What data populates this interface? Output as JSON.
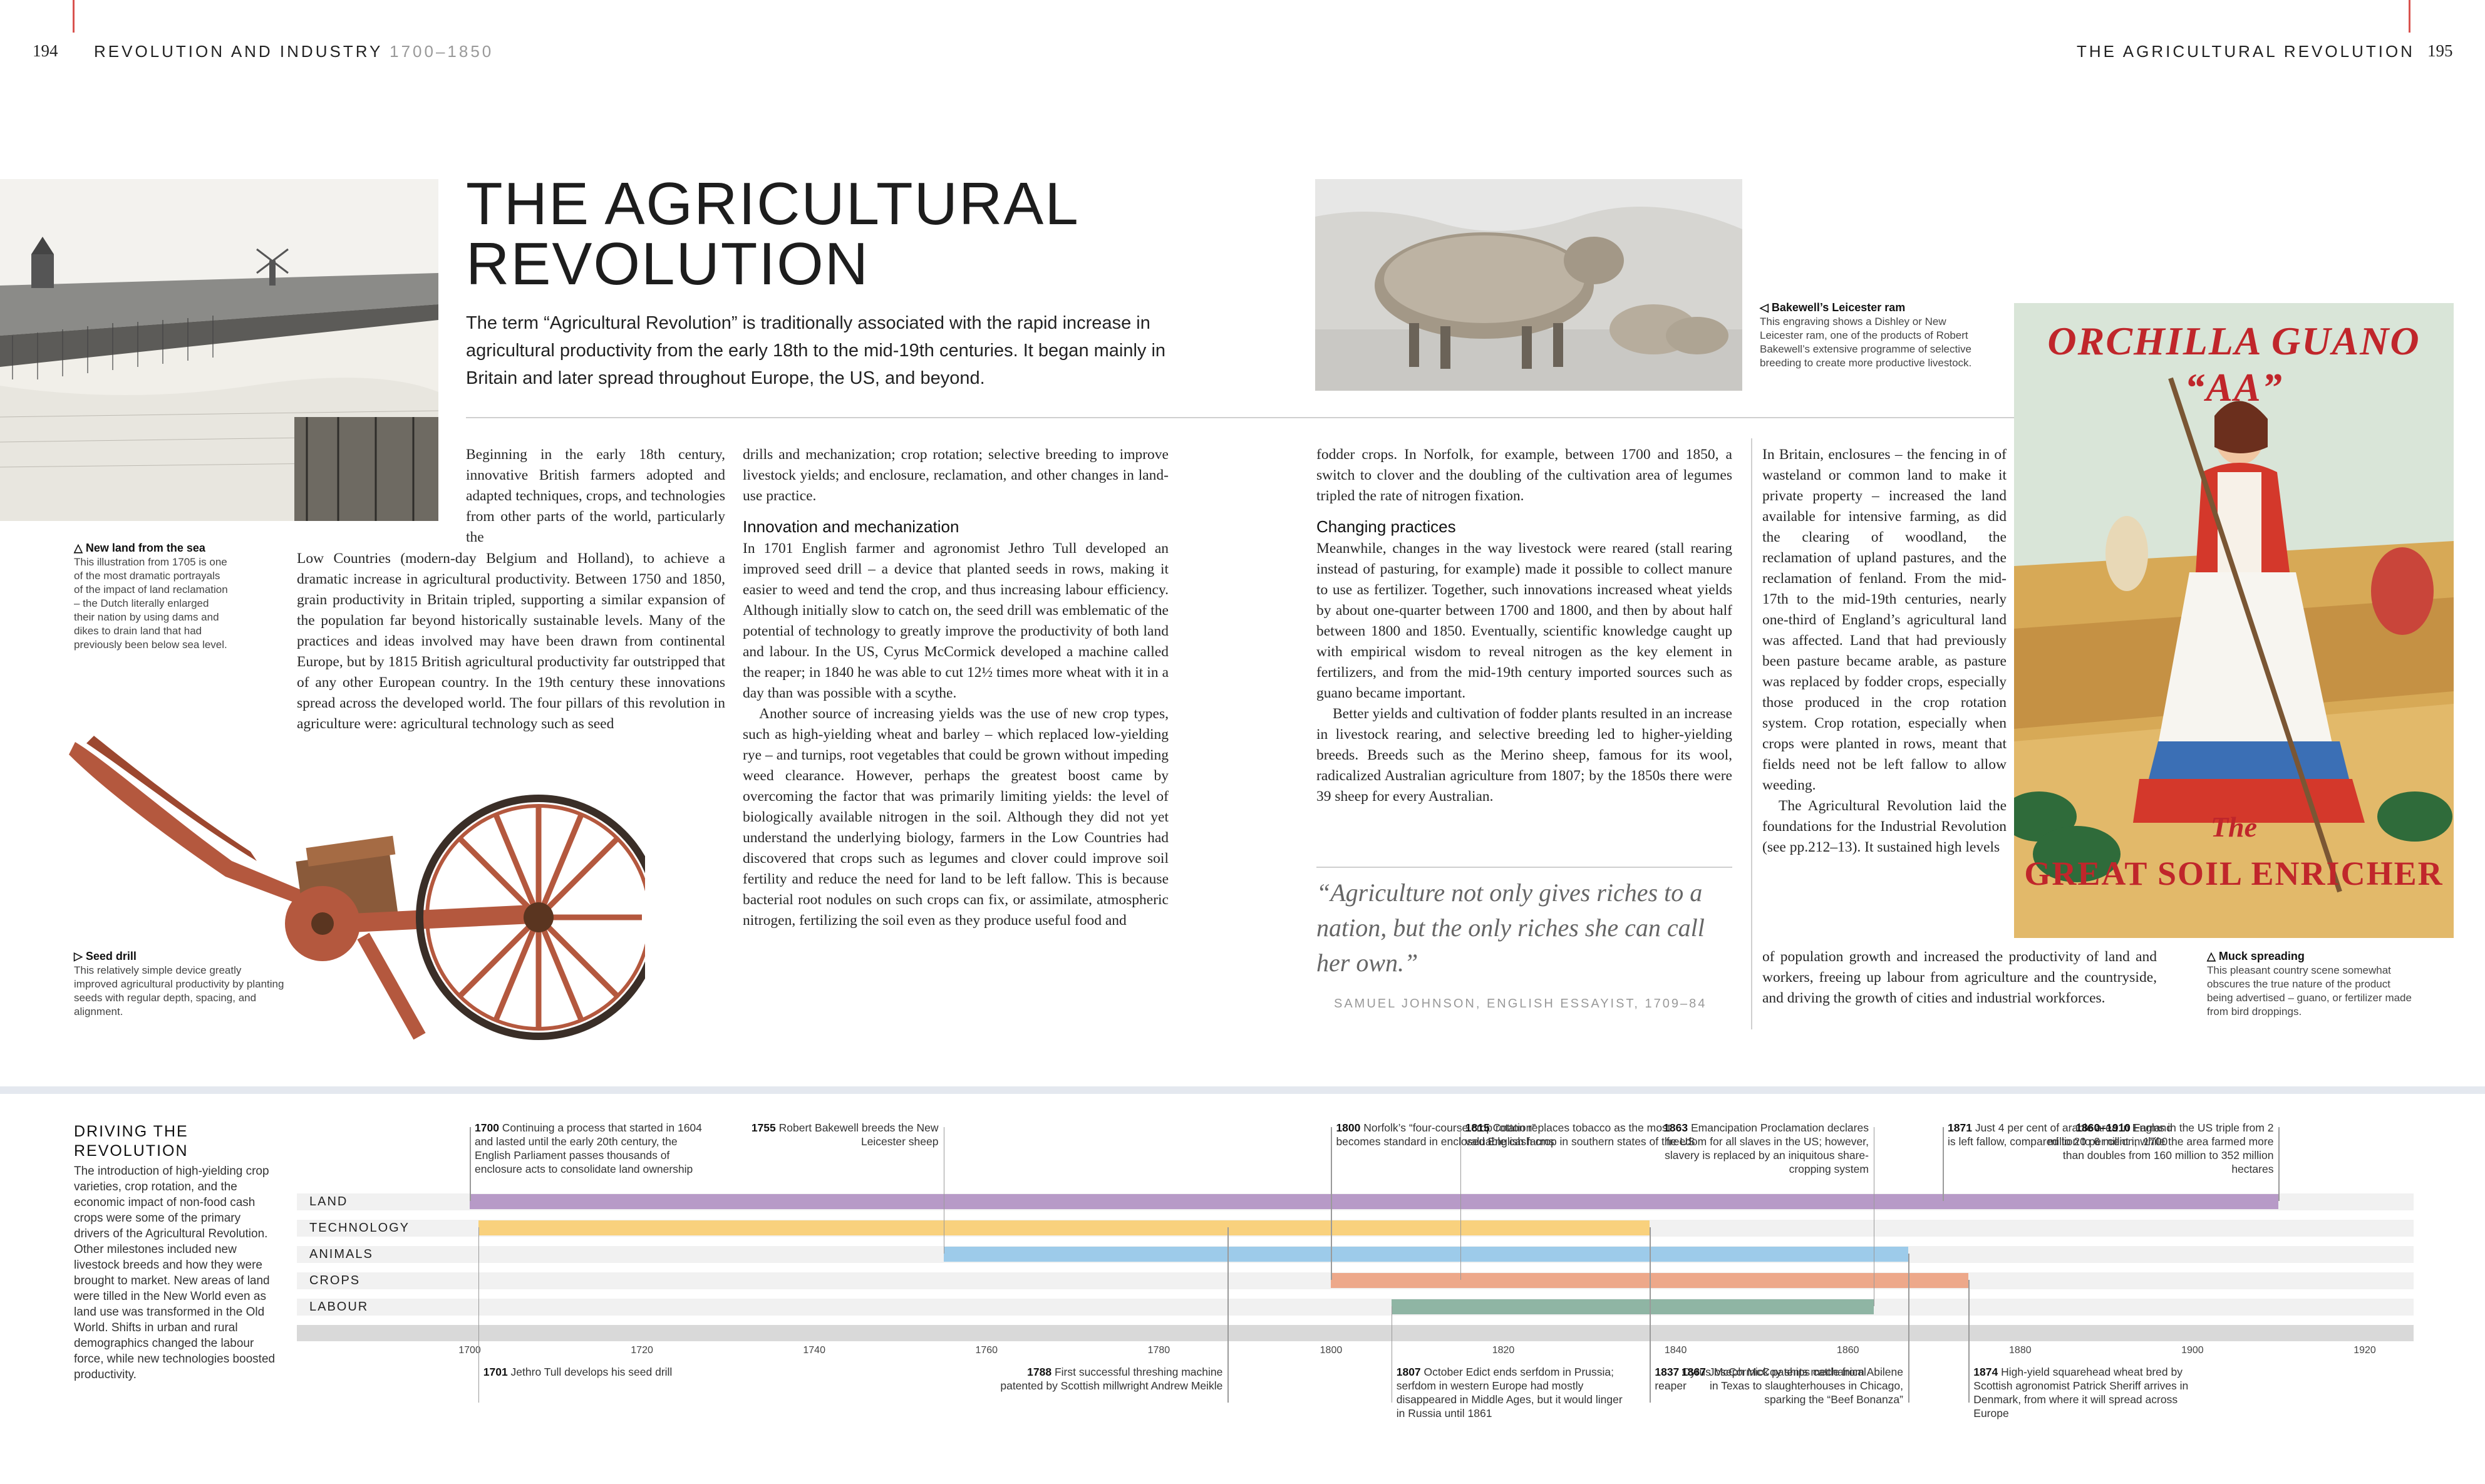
{
  "header": {
    "left_page": "194",
    "left_section": "REVOLUTION AND INDUSTRY",
    "left_dates": "1700–1850",
    "right_section": "THE AGRICULTURAL REVOLUTION",
    "right_page": "195"
  },
  "title_lines": [
    "THE AGRICULTURAL",
    "REVOLUTION"
  ],
  "intro": "The term “Agricultural Revolution” is traditionally associated with the rapid increase in agricultural productivity from the early 18th to the mid-19th centuries. It began mainly in Britain and later spread throughout Europe, the US, and beyond.",
  "captions": {
    "new_land": {
      "title": "△ New land from the sea",
      "text": "This illustration from 1705 is one of the most dramatic portrayals of the impact of land reclamation – the Dutch literally enlarged their nation by using dams and dikes to drain land that had previously been below sea level."
    },
    "seed_drill": {
      "title": "▷ Seed drill",
      "text": "This relatively simple device greatly improved agricultural productivity by planting seeds with regular depth, spacing, and alignment."
    },
    "ram": {
      "title": "◁ Bakewell’s Leicester ram",
      "text": "This engraving shows a Dishley or New Leicester ram, one of the products of Robert Bakewell’s extensive programme of selective breeding to create more productive livestock."
    },
    "muck": {
      "title": "△ Muck spreading",
      "text": "This pleasant country scene somewhat obscures the true nature of the product being advertised – guano, or fertilizer made from bird droppings."
    }
  },
  "poster": {
    "top_text": "ORCHILLA GUANO “AA”",
    "the": "The",
    "bottom_text": "GREAT SOIL ENRICHER"
  },
  "col1": {
    "p1_top": "Beginning in the early 18th century, innovative British farmers adopted and adapted techniques, crops, and technologies from other parts of the world, particularly the",
    "p1_rest": "Low Countries (modern-day Belgium and Holland), to achieve a dramatic increase in agricultural productivity. Between 1750 and 1850, grain productivity in Britain tripled, supporting a similar expansion of the population far beyond historically sustainable levels. Many of the practices and ideas involved may have been drawn from continental Europe, but by 1815 British agricultural productivity far outstripped that of any other European country. In the 19th century these innovations spread across the developed world. The four pillars of this revolution in agriculture were: agricultural technology such as seed"
  },
  "col2": {
    "p0": "drills and mechanization; crop rotation; selective breeding to improve livestock yields; and enclosure, reclamation, and other changes in land-use practice.",
    "heading": "Innovation and mechanization",
    "p1": "In 1701 English farmer and agronomist Jethro Tull developed an improved seed drill – a device that planted seeds in rows, making it easier to weed and tend the crop, and thus increasing labour efficiency. Although initially slow to catch on, the seed drill was emblematic of the potential of technology to greatly improve the productivity of both land and labour. In the US, Cyrus McCormick developed a machine called the reaper; in 1840 he was able to cut 12½ times more wheat with it in a day than was possible with a scythe.",
    "p2": "Another source of increasing yields was the use of new crop types, such as high-yielding wheat and barley – which replaced low-yielding rye – and turnips, root vegetables that could be grown without impeding weed clearance. However, perhaps the greatest boost came by overcoming the factor that was primarily limiting yields: the level of biologically available nitrogen in the soil. Although they did not yet understand the underlying biology, farmers in the Low Countries had discovered that crops such as legumes and clover could improve soil fertility and reduce the need for land to be left fallow. This is because bacterial root nodules on such crops can fix, or assimilate, atmospheric nitrogen, fertilizing the soil even as they produce useful food and"
  },
  "col3": {
    "p0": "fodder crops. In Norfolk, for example, between 1700 and 1850, a switch to clover and the doubling of the cultivation area of legumes tripled the rate of nitrogen fixation.",
    "heading": "Changing practices",
    "p1": "Meanwhile, changes in the way livestock were reared (stall rearing instead of pasturing, for example) made it possible to collect manure to use as fertilizer. Together, such innovations increased wheat yields by about one-quarter between 1700 and 1800, and then by about half between 1800 and 1850. Eventually, scientific knowledge caught up with empirical wisdom to reveal nitrogen as the key element in fertilizers, and from the mid-19th century imported sources such as guano became important.",
    "p2": "Better yields and cultivation of fodder plants resulted in an increase in livestock rearing, and selective breeding led to higher-yielding breeds. Breeds such as the Merino sheep, famous for its wool, radicalized Australian agriculture from 1807; by the 1850s there were 39 sheep for every Australian."
  },
  "quote": {
    "text": "“Agriculture not only gives riches to a nation, but the only riches she can call her own.”",
    "attribution": "SAMUEL JOHNSON, ENGLISH ESSAYIST, 1709–84"
  },
  "col4": {
    "p1_top": "In Britain, enclosures – the fencing in of wasteland or common land to make it private property – increased the land available for intensive farming, as did the clearing of woodland, the reclamation of upland pastures, and the reclamation of fenland. From the mid-17th to the mid-19th centuries, nearly one-third of England’s agricultural land was affected. Land that had previously been pasture became arable, as pasture was replaced by fodder crops, especially those produced in the crop rotation system. Crop rotation, especially when crops were planted in rows, meant that fields need not be left fallow to allow weeding.",
    "p2_top": "The Agricultural Revolution laid the foundations for the Industrial Revolution (see pp.212–13). It sustained high levels",
    "p2_rest": "of population growth and increased the productivity of land and workers, freeing up labour from agriculture and the countryside, and driving the growth of cities and industrial workforces."
  },
  "timeline": {
    "heading": "DRIVING THE REVOLUTION",
    "description": "The introduction of high-yielding crop varieties, crop rotation, and the economic impact of non-food cash crops were some of the primary drivers of the Agricultural Revolution. Other milestones included new livestock breeds and how they were brought to market. New areas of land were tilled in the New World even as land use was transformed in the Old World. Shifts in urban and rural demographics changed the labour force, while new technologies boosted productivity.",
    "rows": [
      "LAND",
      "TECHNOLOGY",
      "ANIMALS",
      "CROPS",
      "LABOUR"
    ],
    "row_colors": [
      "#b79ac7",
      "#f9d17d",
      "#9dcbea",
      "#eda88a",
      "#8fb5a4"
    ],
    "axis_start": 1700,
    "axis_end": 1920,
    "ticks": [
      "1700",
      "1720",
      "1740",
      "1760",
      "1780",
      "1800",
      "1820",
      "1840",
      "1860",
      "1880",
      "1900",
      "1920"
    ],
    "bars": [
      {
        "row": 0,
        "start": 1700,
        "end": 1910
      },
      {
        "row": 1,
        "start": 1701,
        "end": 1837
      },
      {
        "row": 2,
        "start": 1755,
        "end": 1867
      },
      {
        "row": 3,
        "start": 1800,
        "end": 1874
      },
      {
        "row": 4,
        "start": 1807,
        "end": 1863
      }
    ],
    "events_above": [
      {
        "year": 1700,
        "label": "1700",
        "text": "Continuing a process that started in 1604 and lasted until the early 20th century, the English Parliament passes thousands of enclosure acts to consolidate land ownership",
        "align": "left",
        "row": 0
      },
      {
        "year": 1755,
        "label": "1755",
        "text": "Robert Bakewell breeds the New Leicester sheep",
        "align": "right",
        "row": 2
      },
      {
        "year": 1800,
        "label": "1800",
        "text": "Norfolk’s “four-course crop rotation” becomes standard in enclosed English farms",
        "align": "left",
        "row": 3
      },
      {
        "year": 1815,
        "label": "1815",
        "text": "Cotton replaces tobacco as the most valuable cash crop in southern states of the US",
        "align": "left",
        "row": 3
      },
      {
        "year": 1863,
        "label": "1863",
        "text": "Emancipation Proclamation declares freedom for all slaves in the US; however, slavery is replaced by an iniquitous share-cropping system",
        "align": "right",
        "row": 4
      },
      {
        "year": 1871,
        "label": "1871",
        "text": "Just 4 per cent of arable area in England is left fallow, compared to 20 per cent in 1700",
        "align": "left",
        "row": 0
      },
      {
        "year": 1910,
        "label": "1860–1910",
        "text": "Farms in the US triple from 2 million to 6 million, while the area farmed more than doubles from 160 million to 352 million hectares",
        "align": "right",
        "row": 0
      }
    ],
    "events_below": [
      {
        "year": 1701,
        "label": "1701",
        "text": "Jethro Tull develops his seed drill",
        "align": "left",
        "row": 1
      },
      {
        "year": 1788,
        "label": "1788",
        "text": "First successful threshing machine patented by Scottish millwright Andrew Meikle",
        "align": "right",
        "row": 1
      },
      {
        "year": 1807,
        "label": "1807",
        "text": "October Edict ends serfdom in Prussia; serfdom in western Europe had mostly disappeared in Middle Ages, but it would linger in Russia until 1861",
        "align": "left",
        "row": 4
      },
      {
        "year": 1837,
        "label": "1837",
        "text": "Cyrus McCormick patents mechanical reaper",
        "align": "left",
        "row": 1
      },
      {
        "year": 1867,
        "label": "1867",
        "text": "Joseph McCoy ships cattle from Abilene in Texas to slaughterhouses in Chicago, sparking the “Beef Bonanza”",
        "align": "right",
        "row": 2
      },
      {
        "year": 1874,
        "label": "1874",
        "text": "High-yield squarehead wheat bred by Scottish agronomist Patrick Sheriff arrives in Denmark, from where it will spread across Europe",
        "align": "left",
        "row": 3
      }
    ]
  }
}
